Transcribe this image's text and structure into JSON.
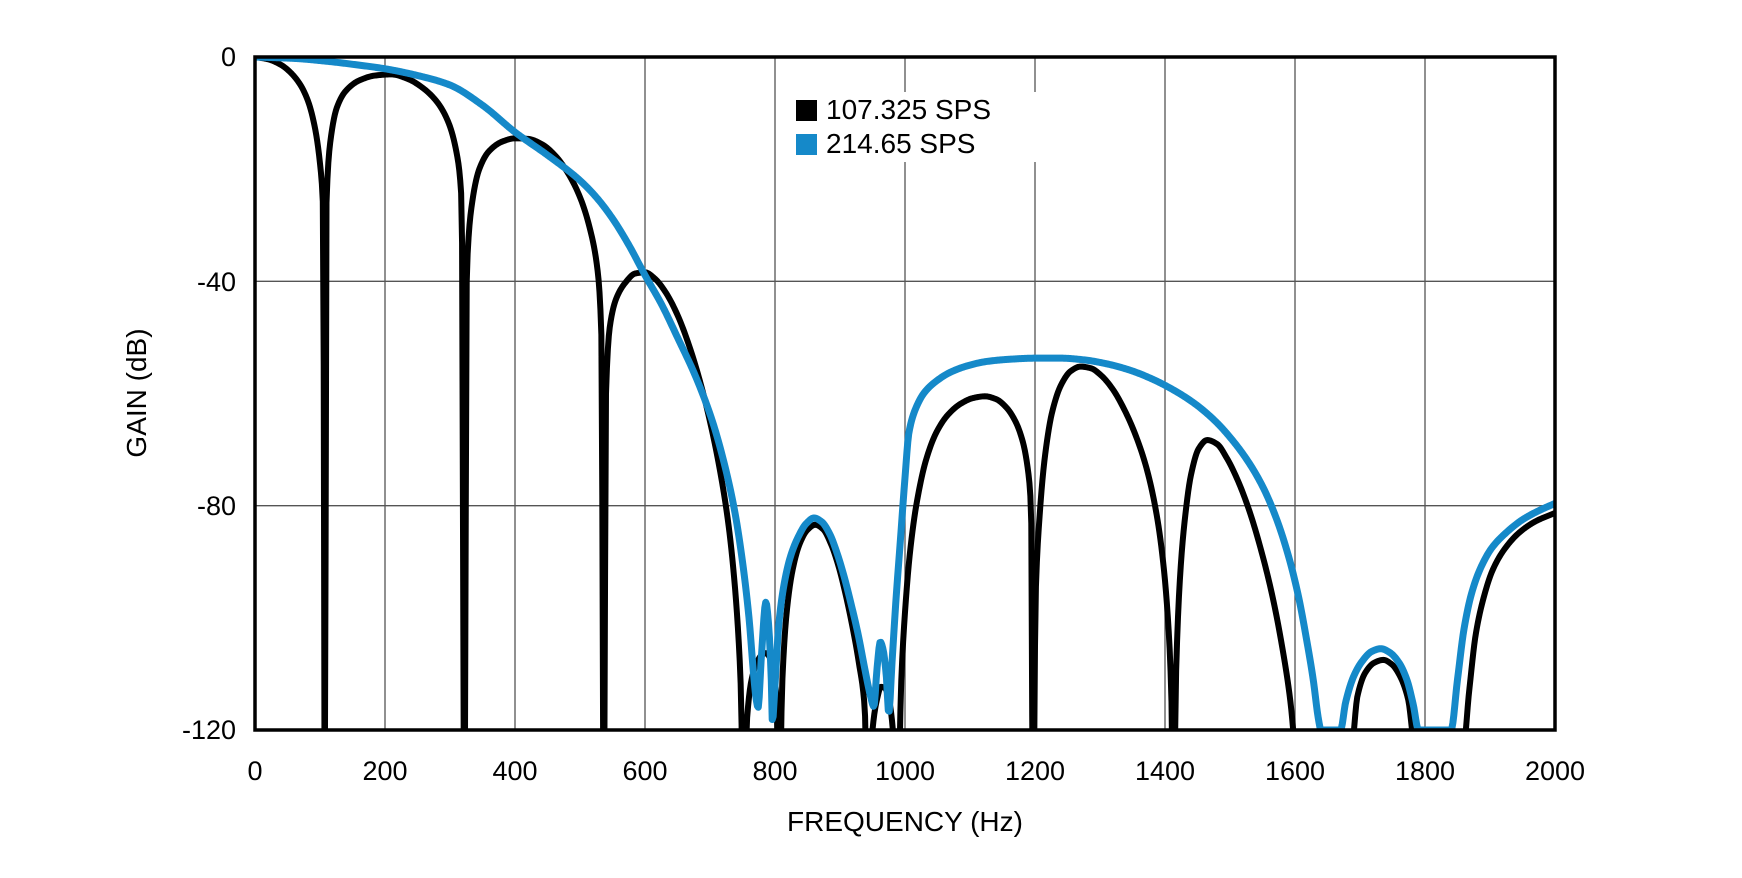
{
  "axes": {
    "x": {
      "label": "FREQUENCY (Hz)",
      "min": 0,
      "max": 2000,
      "tick_step": 200,
      "tick_labels": [
        "0",
        "200",
        "400",
        "600",
        "800",
        "1000",
        "1200",
        "1400",
        "1600",
        "1800",
        "2000"
      ]
    },
    "y": {
      "label": "GAIN (dB)",
      "min": -120,
      "max": 0,
      "tick_labels": [
        "0",
        "-40",
        "-80",
        "-120"
      ],
      "gridlines_db": [
        -40,
        -80
      ]
    }
  },
  "legend": {
    "items": [
      {
        "label": "107.325 SPS",
        "color": "#000000"
      },
      {
        "label": "214.65 SPS",
        "color": "#1589c9"
      }
    ]
  },
  "style": {
    "grid_color": "#555555",
    "border_color": "#000000",
    "background": "#ffffff"
  },
  "chart_data": {
    "type": "line",
    "title": "",
    "xlabel": "FREQUENCY (Hz)",
    "ylabel": "GAIN (dB)",
    "xlim": [
      0,
      2000
    ],
    "ylim": [
      -120,
      0
    ],
    "grid": true,
    "legend_position": "upper-center",
    "series": [
      {
        "name": "107.325 SPS",
        "color": "#000000",
        "stroke_width": 6,
        "notch_frequencies_hz": [
          107.3,
          322,
          536.6,
          751,
          806,
          943,
          988,
          1197,
          1413,
          1610,
          1786,
          1858
        ],
        "lobe_peaks_db": [
          [
            210,
            -3.1
          ],
          [
            400,
            -14.5
          ],
          [
            600,
            -38.4
          ],
          [
            786,
            -106.3
          ],
          [
            862,
            -83.4
          ],
          [
            966,
            -112.3
          ],
          [
            1123,
            -60.5
          ],
          [
            1270,
            -55.2
          ],
          [
            1465,
            -68.3
          ],
          [
            1736,
            -107.5
          ],
          [
            2000,
            -81.3
          ]
        ],
        "points": [
          [
            0,
            0
          ],
          [
            20,
            -0.4
          ],
          [
            40,
            -1.4
          ],
          [
            55,
            -2.8
          ],
          [
            70,
            -5
          ],
          [
            82,
            -8
          ],
          [
            92,
            -12.5
          ],
          [
            100,
            -19
          ],
          [
            105,
            -28
          ],
          [
            107.3,
            -140
          ],
          [
            110,
            -26
          ],
          [
            116,
            -15
          ],
          [
            126,
            -9
          ],
          [
            140,
            -6
          ],
          [
            160,
            -4.2
          ],
          [
            185,
            -3.3
          ],
          [
            210,
            -3.1
          ],
          [
            235,
            -3.9
          ],
          [
            258,
            -5.5
          ],
          [
            280,
            -8
          ],
          [
            297,
            -11.5
          ],
          [
            310,
            -17
          ],
          [
            318,
            -26
          ],
          [
            322,
            -140
          ],
          [
            326,
            -38
          ],
          [
            334,
            -26
          ],
          [
            345,
            -20
          ],
          [
            360,
            -16.8
          ],
          [
            380,
            -15.1
          ],
          [
            400,
            -14.5
          ],
          [
            420,
            -14.6
          ],
          [
            442,
            -15.6
          ],
          [
            462,
            -17.6
          ],
          [
            482,
            -20.8
          ],
          [
            500,
            -25
          ],
          [
            515,
            -30.5
          ],
          [
            527,
            -38
          ],
          [
            533,
            -50
          ],
          [
            536.6,
            -140
          ],
          [
            540,
            -60
          ],
          [
            546,
            -48
          ],
          [
            556,
            -43
          ],
          [
            570,
            -40.2
          ],
          [
            585,
            -38.6
          ],
          [
            600,
            -38.4
          ],
          [
            615,
            -39.5
          ],
          [
            632,
            -42
          ],
          [
            650,
            -46
          ],
          [
            668,
            -51.5
          ],
          [
            685,
            -58
          ],
          [
            700,
            -65
          ],
          [
            715,
            -73.5
          ],
          [
            728,
            -83
          ],
          [
            738,
            -94
          ],
          [
            745,
            -106
          ],
          [
            748,
            -115
          ],
          [
            751,
            -140
          ],
          [
            757,
            -118
          ],
          [
            764,
            -111
          ],
          [
            772,
            -108
          ],
          [
            779,
            -106.7
          ],
          [
            786,
            -106.3
          ],
          [
            793,
            -107.3
          ],
          [
            799,
            -110.5
          ],
          [
            803,
            -116
          ],
          [
            806,
            -140
          ],
          [
            811,
            -112
          ],
          [
            818,
            -99
          ],
          [
            827,
            -91.5
          ],
          [
            838,
            -86.8
          ],
          [
            850,
            -84.3
          ],
          [
            862,
            -83.4
          ],
          [
            874,
            -84.2
          ],
          [
            886,
            -86.8
          ],
          [
            897,
            -90.5
          ],
          [
            908,
            -95.5
          ],
          [
            919,
            -101.5
          ],
          [
            929,
            -108
          ],
          [
            938,
            -116
          ],
          [
            943,
            -140
          ],
          [
            950,
            -120
          ],
          [
            957,
            -114.5
          ],
          [
            963,
            -112.3
          ],
          [
            969,
            -112.5
          ],
          [
            976,
            -115
          ],
          [
            982,
            -121
          ],
          [
            988,
            -140
          ],
          [
            994,
            -112
          ],
          [
            1000,
            -99
          ],
          [
            1008,
            -88
          ],
          [
            1018,
            -79.5
          ],
          [
            1032,
            -72
          ],
          [
            1048,
            -67
          ],
          [
            1066,
            -63.8
          ],
          [
            1086,
            -61.8
          ],
          [
            1105,
            -60.8
          ],
          [
            1123,
            -60.5
          ],
          [
            1140,
            -61
          ],
          [
            1156,
            -62.5
          ],
          [
            1170,
            -65
          ],
          [
            1181,
            -68.5
          ],
          [
            1189,
            -73.5
          ],
          [
            1194,
            -81
          ],
          [
            1197,
            -140
          ],
          [
            1201,
            -96
          ],
          [
            1207,
            -82
          ],
          [
            1215,
            -71.5
          ],
          [
            1226,
            -63.5
          ],
          [
            1240,
            -58.5
          ],
          [
            1255,
            -56
          ],
          [
            1270,
            -55.2
          ],
          [
            1286,
            -55.5
          ],
          [
            1302,
            -56.8
          ],
          [
            1320,
            -59.3
          ],
          [
            1338,
            -63
          ],
          [
            1355,
            -67.5
          ],
          [
            1372,
            -73.5
          ],
          [
            1387,
            -81.5
          ],
          [
            1398,
            -91
          ],
          [
            1406,
            -103
          ],
          [
            1410,
            -115
          ],
          [
            1413,
            -140
          ],
          [
            1417,
            -110
          ],
          [
            1423,
            -93
          ],
          [
            1430,
            -83
          ],
          [
            1440,
            -74.5
          ],
          [
            1452,
            -69.8
          ],
          [
            1465,
            -68.3
          ],
          [
            1480,
            -69
          ],
          [
            1495,
            -71.5
          ],
          [
            1512,
            -75.5
          ],
          [
            1530,
            -81
          ],
          [
            1548,
            -88
          ],
          [
            1565,
            -96
          ],
          [
            1580,
            -105
          ],
          [
            1593,
            -115
          ],
          [
            1600,
            -124
          ],
          [
            1610,
            -140
          ],
          [
            1615,
            -124
          ],
          [
            1686,
            -124
          ],
          [
            1696,
            -114
          ],
          [
            1708,
            -109.8
          ],
          [
            1722,
            -108
          ],
          [
            1736,
            -107.5
          ],
          [
            1749,
            -108.3
          ],
          [
            1762,
            -110.5
          ],
          [
            1774,
            -114.5
          ],
          [
            1786,
            -124
          ],
          [
            1858,
            -124
          ],
          [
            1868,
            -113
          ],
          [
            1878,
            -103
          ],
          [
            1890,
            -96.5
          ],
          [
            1904,
            -91.5
          ],
          [
            1922,
            -87.8
          ],
          [
            1945,
            -84.8
          ],
          [
            1970,
            -82.8
          ],
          [
            2000,
            -81.3
          ]
        ]
      },
      {
        "name": "214.65 SPS",
        "color": "#1589c9",
        "stroke_width": 7,
        "notch_frequencies_hz": [
          774,
          796,
          952,
          975,
          1640,
          1790,
          1845
        ],
        "lobe_peaks_db": [
          [
            786,
            -97.2
          ],
          [
            860,
            -82.2
          ],
          [
            962,
            -104.3
          ],
          [
            1240,
            -53.7
          ],
          [
            1732,
            -105.5
          ],
          [
            2000,
            -79.6
          ]
        ],
        "points": [
          [
            0,
            0
          ],
          [
            60,
            -0.25
          ],
          [
            110,
            -0.75
          ],
          [
            160,
            -1.45
          ],
          [
            200,
            -2.1
          ],
          [
            250,
            -3.3
          ],
          [
            300,
            -5
          ],
          [
            350,
            -8.6
          ],
          [
            400,
            -13.4
          ],
          [
            450,
            -17.5
          ],
          [
            497,
            -21.7
          ],
          [
            525,
            -25
          ],
          [
            550,
            -28.8
          ],
          [
            575,
            -33.5
          ],
          [
            600,
            -38.9
          ],
          [
            625,
            -44
          ],
          [
            650,
            -50
          ],
          [
            678,
            -57
          ],
          [
            703,
            -64.7
          ],
          [
            722,
            -72.5
          ],
          [
            738,
            -81
          ],
          [
            750,
            -90
          ],
          [
            760,
            -100
          ],
          [
            767,
            -110
          ],
          [
            771,
            -114.5
          ],
          [
            774,
            -116
          ],
          [
            779,
            -107
          ],
          [
            786,
            -97.2
          ],
          [
            790,
            -101
          ],
          [
            794,
            -110
          ],
          [
            796,
            -118.5
          ],
          [
            800,
            -112
          ],
          [
            806,
            -101
          ],
          [
            814,
            -94
          ],
          [
            824,
            -89
          ],
          [
            836,
            -85.5
          ],
          [
            848,
            -83.2
          ],
          [
            860,
            -82.2
          ],
          [
            872,
            -82.9
          ],
          [
            884,
            -85
          ],
          [
            895,
            -88.3
          ],
          [
            906,
            -92.5
          ],
          [
            917,
            -97.5
          ],
          [
            928,
            -103
          ],
          [
            938,
            -109
          ],
          [
            947,
            -114
          ],
          [
            952,
            -115.8
          ],
          [
            957,
            -109
          ],
          [
            962,
            -104.3
          ],
          [
            966,
            -105.5
          ],
          [
            971,
            -110
          ],
          [
            975,
            -117
          ],
          [
            980,
            -108
          ],
          [
            986,
            -97
          ],
          [
            993,
            -86
          ],
          [
            1000,
            -75
          ],
          [
            1006,
            -67
          ],
          [
            1016,
            -62.8
          ],
          [
            1030,
            -59.8
          ],
          [
            1048,
            -57.8
          ],
          [
            1070,
            -56.2
          ],
          [
            1095,
            -55.1
          ],
          [
            1125,
            -54.3
          ],
          [
            1160,
            -53.9
          ],
          [
            1200,
            -53.7
          ],
          [
            1240,
            -53.7
          ],
          [
            1275,
            -54
          ],
          [
            1310,
            -54.7
          ],
          [
            1345,
            -55.8
          ],
          [
            1380,
            -57.4
          ],
          [
            1415,
            -59.5
          ],
          [
            1448,
            -62
          ],
          [
            1478,
            -65
          ],
          [
            1505,
            -68.5
          ],
          [
            1530,
            -72.5
          ],
          [
            1552,
            -77
          ],
          [
            1572,
            -82.5
          ],
          [
            1590,
            -89
          ],
          [
            1605,
            -96
          ],
          [
            1618,
            -104
          ],
          [
            1628,
            -111
          ],
          [
            1636,
            -118
          ],
          [
            1640,
            -120
          ],
          [
            1670,
            -120
          ],
          [
            1678,
            -115
          ],
          [
            1690,
            -110.5
          ],
          [
            1703,
            -107.8
          ],
          [
            1718,
            -106
          ],
          [
            1732,
            -105.5
          ],
          [
            1746,
            -106.2
          ],
          [
            1760,
            -108
          ],
          [
            1772,
            -111
          ],
          [
            1782,
            -115.5
          ],
          [
            1790,
            -120
          ],
          [
            1840,
            -120
          ],
          [
            1850,
            -111
          ],
          [
            1860,
            -102
          ],
          [
            1872,
            -95.5
          ],
          [
            1886,
            -91
          ],
          [
            1903,
            -87.5
          ],
          [
            1925,
            -84.8
          ],
          [
            1950,
            -82.5
          ],
          [
            1975,
            -80.9
          ],
          [
            2000,
            -79.6
          ]
        ]
      }
    ]
  }
}
